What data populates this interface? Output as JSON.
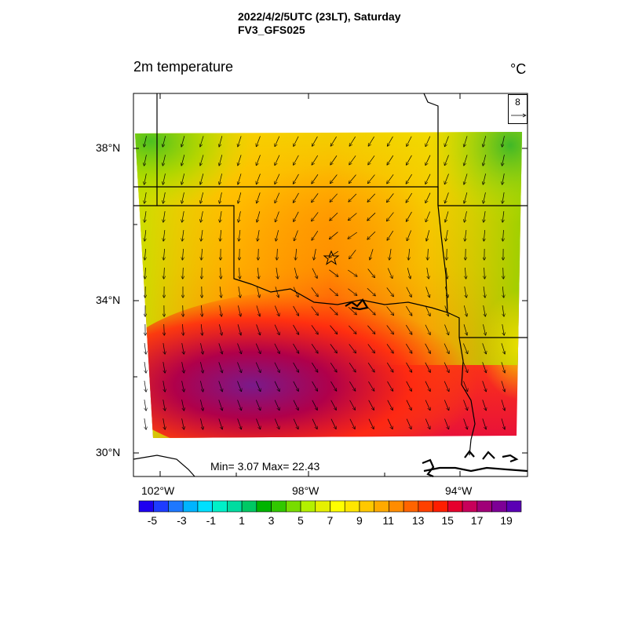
{
  "title": {
    "line1": "2022/4/2/5UTC (23LT), Saturday",
    "line2": "FV3_GFS025"
  },
  "variable_label": "2m temperature",
  "unit_label": "°C",
  "stats": {
    "text": "Min= 3.07 Max= 22.43",
    "min": 3.07,
    "max": 22.43
  },
  "vector_key": {
    "value": "8"
  },
  "lon_ticks": [
    "102°W",
    "98°W",
    "94°W"
  ],
  "lat_ticks": [
    "38°N",
    "34°N",
    "30°N"
  ],
  "colorbar": {
    "labels": [
      "-5",
      "-3",
      "-1",
      "1",
      "3",
      "5",
      "7",
      "9",
      "11",
      "13",
      "15",
      "17",
      "19"
    ],
    "colors": [
      "#1e00f0",
      "#1e3cff",
      "#1e78ff",
      "#00b4ff",
      "#00e0ff",
      "#00f0c8",
      "#00dca0",
      "#00c864",
      "#00b400",
      "#32c800",
      "#78dc00",
      "#b4f000",
      "#e6f000",
      "#ffff00",
      "#ffe600",
      "#ffc800",
      "#ffaa00",
      "#ff8c00",
      "#ff6400",
      "#ff4000",
      "#ff1e00",
      "#e6002d",
      "#c8005a",
      "#a00078",
      "#7d0096",
      "#5a00b4"
    ]
  },
  "map": {
    "region": "Texas / Oklahoma",
    "marker": "star",
    "field_colors": {
      "warm": "#d0103a",
      "hot": "#7a0a8c",
      "mid": "#ff8c00",
      "cool": "#e6e600",
      "cold": "#78c800"
    }
  }
}
